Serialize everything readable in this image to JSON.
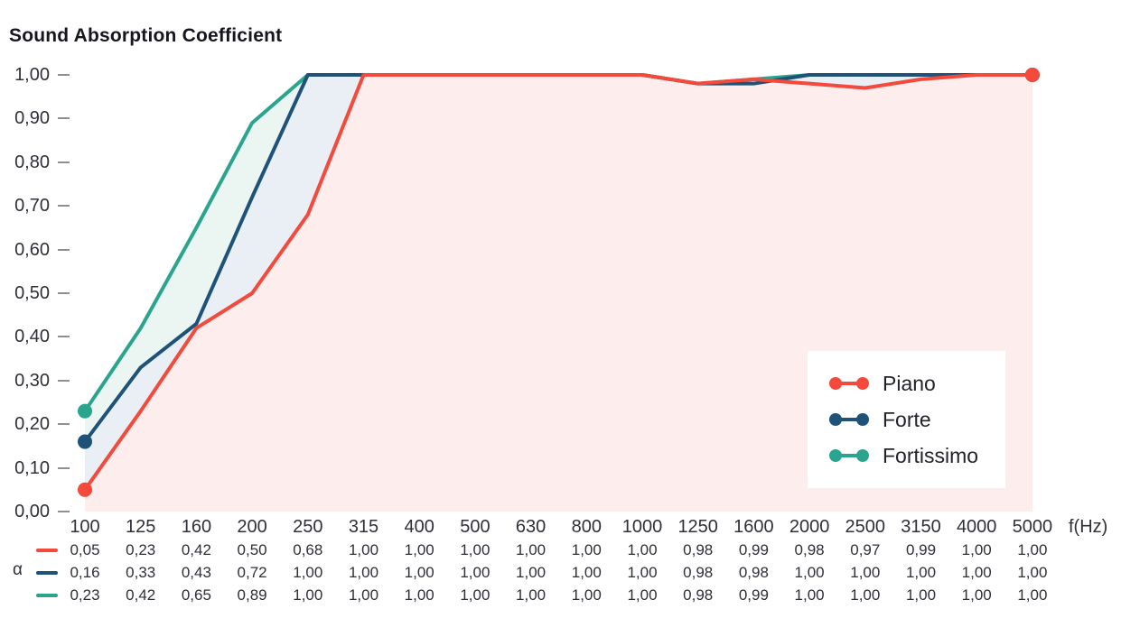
{
  "title": "Sound Absorption Coefficient",
  "colors": {
    "piano": "#f4493b",
    "forte": "#1e5278",
    "fortissimo": "#2ba48d",
    "piano_fill": "#fdeded",
    "forte_fill": "#e9eff5",
    "fortissimo_fill": "#ebf5f2",
    "axis_text": "#2f2f38",
    "tick_dash": "#8e8e94",
    "title_text": "#16161e"
  },
  "axes": {
    "y_ticks": [
      "1,00",
      "0,90",
      "0,80",
      "0,70",
      "0,60",
      "0,50",
      "0,40",
      "0,30",
      "0,20",
      "0,10",
      "0,00"
    ],
    "x_unit_label": "f(Hz)",
    "table_row_label": "α"
  },
  "chart_data": {
    "type": "line",
    "title": "Sound Absorption Coefficient",
    "xlabel": "f(Hz)",
    "ylabel": "α",
    "ylim": [
      0,
      1
    ],
    "grid": false,
    "legend_position": "right-center",
    "area_fill": true,
    "categories": [
      100,
      125,
      160,
      200,
      250,
      315,
      400,
      500,
      630,
      800,
      1000,
      1250,
      1600,
      2000,
      2500,
      3150,
      4000,
      5000
    ],
    "series": [
      {
        "name": "Piano",
        "color": "#f4493b",
        "fill": "#fdeded",
        "values": [
          0.05,
          0.23,
          0.42,
          0.5,
          0.68,
          1.0,
          1.0,
          1.0,
          1.0,
          1.0,
          1.0,
          0.98,
          0.99,
          0.98,
          0.97,
          0.99,
          1.0,
          1.0
        ]
      },
      {
        "name": "Forte",
        "color": "#1e5278",
        "fill": "#e9eff5",
        "values": [
          0.16,
          0.33,
          0.43,
          0.72,
          1.0,
          1.0,
          1.0,
          1.0,
          1.0,
          1.0,
          1.0,
          0.98,
          0.98,
          1.0,
          1.0,
          1.0,
          1.0,
          1.0
        ]
      },
      {
        "name": "Fortissimo",
        "color": "#2ba48d",
        "fill": "#ebf5f2",
        "values": [
          0.23,
          0.42,
          0.65,
          0.89,
          1.0,
          1.0,
          1.0,
          1.0,
          1.0,
          1.0,
          1.0,
          0.98,
          0.99,
          1.0,
          1.0,
          1.0,
          1.0,
          1.0
        ]
      }
    ]
  },
  "legend": {
    "items": [
      {
        "label": "Piano"
      },
      {
        "label": "Forte"
      },
      {
        "label": "Fortissimo"
      }
    ]
  },
  "table": {
    "frequencies": [
      "100",
      "125",
      "160",
      "200",
      "250",
      "315",
      "400",
      "500",
      "630",
      "800",
      "1000",
      "1250",
      "1600",
      "2000",
      "2500",
      "3150",
      "4000",
      "5000"
    ],
    "rows": [
      {
        "series": "Piano",
        "values": [
          "0,05",
          "0,23",
          "0,42",
          "0,50",
          "0,68",
          "1,00",
          "1,00",
          "1,00",
          "1,00",
          "1,00",
          "1,00",
          "0,98",
          "0,99",
          "0,98",
          "0,97",
          "0,99",
          "1,00",
          "1,00"
        ]
      },
      {
        "series": "Forte",
        "values": [
          "0,16",
          "0,33",
          "0,43",
          "0,72",
          "1,00",
          "1,00",
          "1,00",
          "1,00",
          "1,00",
          "1,00",
          "1,00",
          "0,98",
          "0,98",
          "1,00",
          "1,00",
          "1,00",
          "1,00",
          "1,00"
        ]
      },
      {
        "series": "Fortissimo",
        "values": [
          "0,23",
          "0,42",
          "0,65",
          "0,89",
          "1,00",
          "1,00",
          "1,00",
          "1,00",
          "1,00",
          "1,00",
          "1,00",
          "0,98",
          "0,99",
          "1,00",
          "1,00",
          "1,00",
          "1,00",
          "1,00"
        ]
      }
    ]
  }
}
